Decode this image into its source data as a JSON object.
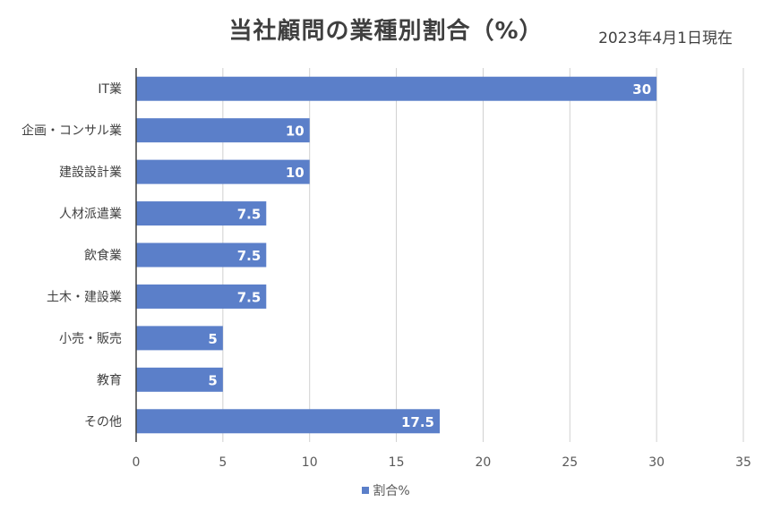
{
  "header": {
    "title": "当社顧問の業種別割合（%）",
    "date": "2023年4月1日現在"
  },
  "chart_data": {
    "type": "bar",
    "orientation": "horizontal",
    "title": "当社顧問の業種別割合（%）",
    "subtitle": "2023年4月1日現在",
    "categories": [
      "IT業",
      "企画・コンサル業",
      "建設設計業",
      "人材派遣業",
      "飲食業",
      "土木・建設業",
      "小売・販売",
      "教育",
      "その他"
    ],
    "series": [
      {
        "name": "割合%",
        "values": [
          30,
          10,
          10,
          7.5,
          7.5,
          7.5,
          5,
          5,
          17.5
        ]
      }
    ],
    "xlim": [
      0,
      35
    ],
    "xticks": [
      0,
      5,
      10,
      15,
      20,
      25,
      30,
      35
    ],
    "grid": true,
    "data_labels": true,
    "legend_position": "bottom",
    "bar_color": "#5b7fc9"
  }
}
